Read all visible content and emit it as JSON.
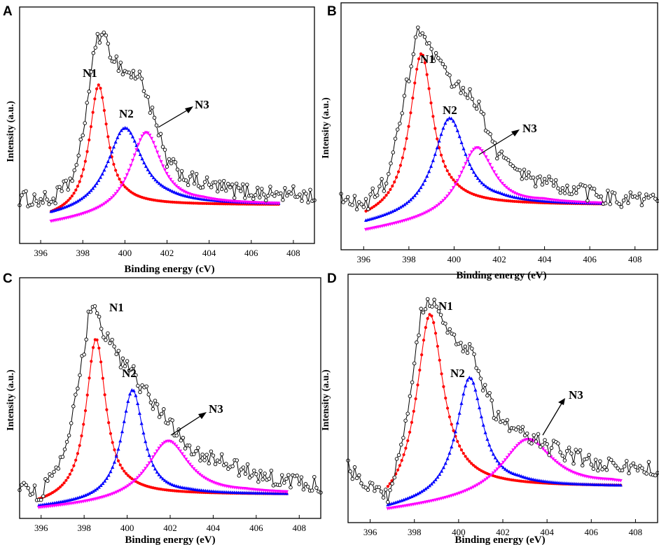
{
  "chart_data": [
    {
      "type": "line",
      "panel": "A",
      "title": "",
      "xlabel": "Binding energy (cV)",
      "ylabel": "Intensity (a.u.)",
      "xlim": [
        395,
        409
      ],
      "ylim": [
        0,
        1.1
      ],
      "xticks": [
        396,
        398,
        400,
        402,
        404,
        406,
        408
      ],
      "grid": false,
      "experimental_x_range": [
        395.0,
        409.0
      ],
      "fit_x_range": [
        396.5,
        407.3
      ],
      "baseline": 0.18,
      "series": [
        {
          "name": "N1",
          "label": "N1",
          "color": "#ff0000",
          "marker": "circle",
          "center": 398.75,
          "height": 0.58,
          "hwhm": 0.52,
          "baseline_start": 0.12
        },
        {
          "name": "N2",
          "label": "N2",
          "color": "#0000ff",
          "marker": "triangle-up",
          "center": 400.0,
          "height": 0.38,
          "hwhm": 1.0,
          "baseline_start": 0.12
        },
        {
          "name": "N3",
          "label": "N3",
          "color": "#ff00ff",
          "marker": "triangle-down",
          "center": 401.0,
          "height": 0.37,
          "hwhm": 0.9,
          "baseline_start": 0.09
        }
      ],
      "experimental_envelope": [
        [
          395.0,
          0.21
        ],
        [
          396.5,
          0.2
        ],
        [
          397.3,
          0.27
        ],
        [
          397.8,
          0.38
        ],
        [
          398.3,
          0.72
        ],
        [
          398.7,
          0.98
        ],
        [
          399.0,
          0.95
        ],
        [
          399.5,
          0.86
        ],
        [
          400.0,
          0.8
        ],
        [
          400.8,
          0.77
        ],
        [
          401.3,
          0.6
        ],
        [
          402.0,
          0.38
        ],
        [
          403.0,
          0.3
        ],
        [
          404.0,
          0.27
        ],
        [
          405.0,
          0.25
        ],
        [
          406.0,
          0.24
        ],
        [
          407.0,
          0.23
        ],
        [
          408.0,
          0.23
        ],
        [
          409.0,
          0.22
        ]
      ],
      "annotations": [
        {
          "text": "N3",
          "arrow": true
        }
      ]
    },
    {
      "type": "line",
      "panel": "B",
      "title": "",
      "xlabel": "Binding energy (eV)",
      "ylabel": "Intensity (a.u.)",
      "xlim": [
        395,
        409
      ],
      "ylim": [
        0,
        1.1
      ],
      "xticks": [
        396,
        398,
        400,
        402,
        404,
        406,
        408
      ],
      "grid": false,
      "experimental_x_range": [
        395.0,
        409.0
      ],
      "fit_x_range": [
        396.1,
        406.7
      ],
      "baseline": 0.2,
      "series": [
        {
          "name": "N1",
          "label": "N1",
          "color": "#ff0000",
          "marker": "circle",
          "center": 398.55,
          "height": 0.7,
          "hwhm": 0.62,
          "baseline_start": 0.13
        },
        {
          "name": "N2",
          "label": "N2",
          "color": "#0000ff",
          "marker": "triangle-up",
          "center": 399.8,
          "height": 0.42,
          "hwhm": 0.85,
          "baseline_start": 0.11
        },
        {
          "name": "N3",
          "label": "N3",
          "color": "#ff00ff",
          "marker": "triangle-down",
          "center": 401.0,
          "height": 0.3,
          "hwhm": 0.95,
          "baseline_start": 0.08
        }
      ],
      "experimental_envelope": [
        [
          395.0,
          0.22
        ],
        [
          396.1,
          0.2
        ],
        [
          397.0,
          0.31
        ],
        [
          397.5,
          0.5
        ],
        [
          398.0,
          0.78
        ],
        [
          398.4,
          0.98
        ],
        [
          398.8,
          0.9
        ],
        [
          399.5,
          0.8
        ],
        [
          400.2,
          0.72
        ],
        [
          400.8,
          0.7
        ],
        [
          401.3,
          0.58
        ],
        [
          402.0,
          0.42
        ],
        [
          403.0,
          0.33
        ],
        [
          404.0,
          0.3
        ],
        [
          405.0,
          0.27
        ],
        [
          406.0,
          0.25
        ],
        [
          407.0,
          0.23
        ],
        [
          408.0,
          0.22
        ],
        [
          409.0,
          0.22
        ]
      ],
      "annotations": [
        {
          "text": "N3",
          "arrow": true
        }
      ]
    },
    {
      "type": "line",
      "panel": "C",
      "title": "",
      "xlabel": "Binding energy (eV)",
      "ylabel": "Intensity (a.u.)",
      "xlim": [
        395,
        409
      ],
      "ylim": [
        0,
        1.1
      ],
      "xticks": [
        396,
        398,
        400,
        402,
        404,
        406,
        408
      ],
      "grid": false,
      "experimental_x_range": [
        395.0,
        409.0
      ],
      "fit_x_range": [
        395.9,
        407.5
      ],
      "baseline": 0.11,
      "series": [
        {
          "name": "N1",
          "label": "N1",
          "color": "#ff0000",
          "marker": "circle",
          "center": 398.55,
          "height": 0.73,
          "hwhm": 0.55,
          "baseline_start": 0.06
        },
        {
          "name": "N2",
          "label": "N2",
          "color": "#0000ff",
          "marker": "triangle-up",
          "center": 400.25,
          "height": 0.5,
          "hwhm": 0.62,
          "baseline_start": 0.05
        },
        {
          "name": "N3",
          "label": "N3",
          "color": "#ff00ff",
          "marker": "triangle-down",
          "center": 401.9,
          "height": 0.27,
          "hwhm": 1.2,
          "baseline_start": 0.04
        }
      ],
      "experimental_envelope": [
        [
          395.0,
          0.15
        ],
        [
          395.9,
          0.11
        ],
        [
          396.7,
          0.2
        ],
        [
          397.3,
          0.38
        ],
        [
          397.8,
          0.64
        ],
        [
          398.3,
          0.98
        ],
        [
          398.8,
          0.88
        ],
        [
          399.5,
          0.74
        ],
        [
          400.2,
          0.68
        ],
        [
          400.8,
          0.58
        ],
        [
          401.5,
          0.5
        ],
        [
          402.2,
          0.4
        ],
        [
          403.0,
          0.32
        ],
        [
          404.0,
          0.27
        ],
        [
          405.0,
          0.24
        ],
        [
          406.0,
          0.2
        ],
        [
          407.0,
          0.18
        ],
        [
          408.0,
          0.16
        ],
        [
          409.0,
          0.15
        ]
      ],
      "annotations": [
        {
          "text": "N3",
          "arrow": true
        }
      ]
    },
    {
      "type": "line",
      "panel": "D",
      "title": "",
      "xlabel": "Binding energy (eV)",
      "ylabel": "Intensity (a.u.)",
      "xlim": [
        395,
        409
      ],
      "ylim": [
        0,
        1.1
      ],
      "xticks": [
        396,
        398,
        400,
        402,
        404,
        406,
        408
      ],
      "grid": false,
      "experimental_x_range": [
        395.0,
        409.0
      ],
      "fit_x_range": [
        396.8,
        407.4
      ],
      "baseline": 0.16,
      "series": [
        {
          "name": "N1",
          "label": "N1",
          "color": "#ff0000",
          "marker": "circle",
          "center": 398.7,
          "height": 0.8,
          "hwhm": 0.72,
          "baseline_start": 0.06
        },
        {
          "name": "N2",
          "label": "N2",
          "color": "#0000ff",
          "marker": "triangle-up",
          "center": 400.5,
          "height": 0.52,
          "hwhm": 0.72,
          "baseline_start": 0.06
        },
        {
          "name": "N3",
          "label": "N3",
          "color": "#ff00ff",
          "marker": "triangle-down",
          "center": 403.1,
          "height": 0.25,
          "hwhm": 1.45,
          "baseline_start": 0.05
        }
      ],
      "experimental_envelope": [
        [
          395.0,
          0.24
        ],
        [
          396.8,
          0.12
        ],
        [
          397.3,
          0.28
        ],
        [
          397.8,
          0.58
        ],
        [
          398.3,
          0.92
        ],
        [
          398.6,
          1.0
        ],
        [
          399.0,
          0.94
        ],
        [
          399.5,
          0.85
        ],
        [
          400.1,
          0.8
        ],
        [
          400.6,
          0.76
        ],
        [
          401.0,
          0.62
        ],
        [
          401.8,
          0.46
        ],
        [
          402.5,
          0.4
        ],
        [
          403.2,
          0.38
        ],
        [
          404.0,
          0.34
        ],
        [
          405.0,
          0.3
        ],
        [
          406.0,
          0.27
        ],
        [
          407.0,
          0.25
        ],
        [
          408.0,
          0.24
        ],
        [
          409.0,
          0.24
        ]
      ],
      "annotations": [
        {
          "text": "N3",
          "arrow": true
        }
      ]
    }
  ]
}
